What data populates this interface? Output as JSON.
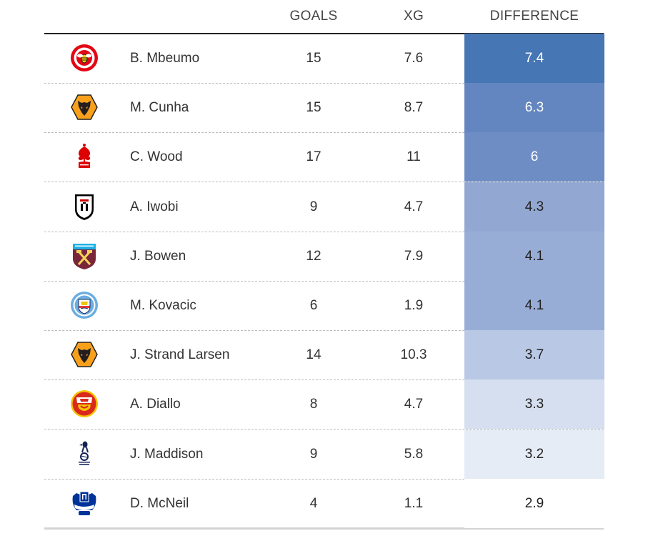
{
  "chart_data": {
    "type": "table",
    "columns": [
      "",
      "",
      "GOALS",
      "XG",
      "DIFFERENCE"
    ],
    "rows": [
      {
        "club_icon": "brentford-crest-icon",
        "player": "B. Mbeumo",
        "goals": "15",
        "xg": "7.6",
        "difference": "7.4",
        "diff_bg": "#4776b4",
        "diff_color": "#ffffff"
      },
      {
        "club_icon": "wolves-crest-icon",
        "player": "M. Cunha",
        "goals": "15",
        "xg": "8.7",
        "difference": "6.3",
        "diff_bg": "#6486c0",
        "diff_color": "#ffffff"
      },
      {
        "club_icon": "nottingham-forest-crest-icon",
        "player": "C. Wood",
        "goals": "17",
        "xg": "11",
        "difference": "6",
        "diff_bg": "#6d8dc4",
        "diff_color": "#ffffff"
      },
      {
        "club_icon": "fulham-crest-icon",
        "player": "A. Iwobi",
        "goals": "9",
        "xg": "4.7",
        "difference": "4.3",
        "diff_bg": "#92a8d3",
        "diff_color": "#222222"
      },
      {
        "club_icon": "west-ham-crest-icon",
        "player": "J. Bowen",
        "goals": "12",
        "xg": "7.9",
        "difference": "4.1",
        "diff_bg": "#98add6",
        "diff_color": "#222222"
      },
      {
        "club_icon": "manchester-city-crest-icon",
        "player": "M. Kovacic",
        "goals": "6",
        "xg": "1.9",
        "difference": "4.1",
        "diff_bg": "#98add6",
        "diff_color": "#222222"
      },
      {
        "club_icon": "wolves-crest-icon",
        "player": "J. Strand Larsen",
        "goals": "14",
        "xg": "10.3",
        "difference": "3.7",
        "diff_bg": "#b9c8e5",
        "diff_color": "#222222"
      },
      {
        "club_icon": "manchester-united-crest-icon",
        "player": "A. Diallo",
        "goals": "8",
        "xg": "4.7",
        "difference": "3.3",
        "diff_bg": "#d6dfef",
        "diff_color": "#222222"
      },
      {
        "club_icon": "tottenham-crest-icon",
        "player": "J. Maddison",
        "goals": "9",
        "xg": "5.8",
        "difference": "3.2",
        "diff_bg": "#e6ecf5",
        "diff_color": "#222222"
      },
      {
        "club_icon": "everton-crest-icon",
        "player": "D. McNeil",
        "goals": "4",
        "xg": "1.1",
        "difference": "2.9",
        "diff_bg": "#ffffff",
        "diff_color": "#222222"
      }
    ]
  }
}
